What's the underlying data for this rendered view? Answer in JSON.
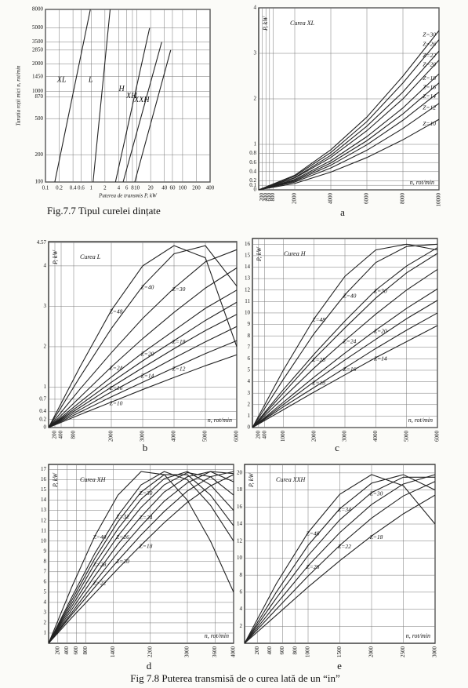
{
  "chart_data": [
    {
      "type": "line",
      "xlog": true,
      "ylog": true,
      "grid": true,
      "color": "#222",
      "x_label": "Puterea de transmis  P, kW",
      "y_label": "Turatia roții mici  n, rot/min",
      "caption": "Fig.7.7 Tipul curelei dințate",
      "xlim": [
        0.1,
        400
      ],
      "ylim": [
        100,
        8000
      ],
      "xticks": [
        0.1,
        0.2,
        0.4,
        0.6,
        1,
        2,
        4,
        6,
        8,
        10,
        20,
        40,
        60,
        100,
        200,
        400
      ],
      "yticks": [
        100,
        200,
        500,
        870,
        1000,
        1450,
        2000,
        2850,
        3500,
        5000,
        8000
      ],
      "series": [
        {
          "name": "XL",
          "x": [
            0.16,
            0.96
          ],
          "values": [
            100,
            8000
          ]
        },
        {
          "name": "L",
          "x": [
            1.1,
            2.6
          ],
          "values": [
            100,
            8000
          ]
        },
        {
          "name": "H",
          "x": [
            3.4,
            19
          ],
          "values": [
            100,
            5000
          ]
        },
        {
          "name": "XH",
          "x": [
            5,
            35
          ],
          "values": [
            100,
            3500
          ]
        },
        {
          "name": "XXH",
          "x": [
            9,
            55
          ],
          "values": [
            100,
            2850
          ]
        }
      ]
    },
    {
      "type": "line",
      "grid": true,
      "color": "#222",
      "title": "Curea XL",
      "x_label": "n, rot/min",
      "y_label": "P, kW",
      "caption": "a",
      "xlim": [
        0,
        10000
      ],
      "ylim": [
        0,
        4
      ],
      "xticks": [
        200,
        400,
        600,
        800,
        2000,
        4000,
        6000,
        8000,
        10000
      ],
      "yticks": [
        0,
        0.1,
        0.2,
        0.4,
        0.6,
        0.8,
        1,
        2,
        3,
        4
      ],
      "x": [
        0,
        2000,
        4000,
        6000,
        8000,
        10000
      ],
      "series": [
        {
          "name": "Z=30",
          "values": [
            0,
            0.32,
            0.88,
            1.6,
            2.5,
            3.5
          ]
        },
        {
          "name": "Z=26",
          "values": [
            0,
            0.3,
            0.82,
            1.5,
            2.35,
            3.3
          ]
        },
        {
          "name": "Z=22",
          "values": [
            0,
            0.27,
            0.76,
            1.4,
            2.15,
            3.05
          ]
        },
        {
          "name": "Z=20",
          "values": [
            0,
            0.26,
            0.71,
            1.3,
            2.0,
            2.85
          ]
        },
        {
          "name": "Z=18",
          "values": [
            0,
            0.23,
            0.64,
            1.17,
            1.8,
            2.55
          ]
        },
        {
          "name": "Z=16",
          "values": [
            0,
            0.21,
            0.59,
            1.08,
            1.67,
            2.35
          ]
        },
        {
          "name": "Z=14",
          "values": [
            0,
            0.19,
            0.54,
            0.99,
            1.53,
            2.15
          ]
        },
        {
          "name": "Z=12",
          "values": [
            0,
            0.17,
            0.48,
            0.87,
            1.35,
            1.9
          ]
        },
        {
          "name": "Z=10",
          "values": [
            0,
            0.14,
            0.39,
            0.71,
            1.1,
            1.55
          ]
        }
      ]
    },
    {
      "type": "line",
      "grid": true,
      "color": "#222",
      "title": "Curea L",
      "x_label": "n, rot/min",
      "y_label": "P, kW",
      "caption": "b",
      "xlim": [
        0,
        6000
      ],
      "ylim": [
        0,
        4.6
      ],
      "xticks": [
        200,
        400,
        800,
        2000,
        3000,
        4000,
        5000,
        6000
      ],
      "yticks": [
        0,
        0.2,
        0.4,
        0.7,
        1,
        2,
        3,
        4,
        4.57
      ],
      "x": [
        0,
        1000,
        2000,
        3000,
        4000,
        5000,
        6000
      ],
      "series": [
        {
          "name": "Z=48",
          "values": [
            0,
            1.5,
            2.9,
            4.0,
            4.5,
            4.2,
            2.0
          ]
        },
        {
          "name": "Z=40",
          "values": [
            0,
            1.25,
            2.45,
            3.5,
            4.3,
            4.5,
            3.5
          ]
        },
        {
          "name": "Z=30",
          "values": [
            0,
            0.95,
            1.85,
            2.7,
            3.45,
            4.1,
            4.4
          ]
        },
        {
          "name": "Z=24",
          "values": [
            0,
            0.75,
            1.5,
            2.2,
            2.85,
            3.45,
            3.95
          ]
        },
        {
          "name": "Z=20",
          "values": [
            0,
            0.63,
            1.25,
            1.85,
            2.4,
            2.95,
            3.4
          ]
        },
        {
          "name": "Z=18",
          "values": [
            0,
            0.56,
            1.12,
            1.65,
            2.15,
            2.65,
            3.1
          ]
        },
        {
          "name": "Z=16",
          "values": [
            0,
            0.5,
            1.0,
            1.48,
            1.95,
            2.4,
            2.8
          ]
        },
        {
          "name": "Z=14",
          "values": [
            0,
            0.44,
            0.88,
            1.3,
            1.72,
            2.12,
            2.5
          ]
        },
        {
          "name": "Z=12",
          "values": [
            0,
            0.38,
            0.76,
            1.12,
            1.48,
            1.83,
            2.15
          ]
        },
        {
          "name": "Z=10",
          "values": [
            0,
            0.32,
            0.63,
            0.94,
            1.24,
            1.53,
            1.8
          ]
        }
      ]
    },
    {
      "type": "line",
      "grid": true,
      "color": "#222",
      "title": "Curea H",
      "x_label": "n, rot/min",
      "y_label": "P, kW",
      "caption": "c",
      "xlim": [
        0,
        6000
      ],
      "ylim": [
        0,
        16.5
      ],
      "xticks": [
        200,
        400,
        1000,
        2000,
        3000,
        4000,
        5000,
        6000
      ],
      "yticks": [
        0,
        1,
        2,
        3,
        4,
        5,
        6,
        7,
        8,
        9,
        10,
        11,
        12,
        13,
        14,
        15,
        16
      ],
      "x": [
        0,
        1000,
        2000,
        3000,
        4000,
        5000,
        6000
      ],
      "series": [
        {
          "name": "Z=48",
          "values": [
            0,
            5,
            9.5,
            13.2,
            15.5,
            16,
            15.5
          ]
        },
        {
          "name": "Z=40",
          "values": [
            0,
            4.2,
            8.2,
            11.6,
            14.4,
            15.8,
            16
          ]
        },
        {
          "name": "Z=30",
          "values": [
            0,
            3.3,
            6.4,
            9.3,
            12,
            14.1,
            15.7
          ]
        },
        {
          "name": "Z=28",
          "values": [
            0,
            3.0,
            6.0,
            8.7,
            11.3,
            13.5,
            15.2
          ]
        },
        {
          "name": "Z=24",
          "values": [
            0,
            2.6,
            5.2,
            7.6,
            9.9,
            12,
            13.8
          ]
        },
        {
          "name": "Z=20",
          "values": [
            0,
            2.2,
            4.4,
            6.5,
            8.5,
            10.4,
            12.1
          ]
        },
        {
          "name": "Z=18",
          "values": [
            0,
            2.0,
            4.0,
            5.9,
            7.7,
            9.5,
            11.1
          ]
        },
        {
          "name": "Z=16",
          "values": [
            0,
            1.8,
            3.5,
            5.2,
            6.9,
            8.5,
            10
          ]
        },
        {
          "name": "Z=14",
          "values": [
            0,
            1.55,
            3.1,
            4.6,
            6.1,
            7.5,
            8.9
          ]
        }
      ]
    },
    {
      "type": "line",
      "grid": true,
      "color": "#222",
      "title": "Curea XH",
      "x_label": "n, rot/min",
      "y_label": "P, kW",
      "caption": "d",
      "xlim": [
        0,
        4000
      ],
      "ylim": [
        0,
        17.5
      ],
      "xticks": [
        200,
        400,
        600,
        800,
        1400,
        2200,
        3000,
        3600,
        4000
      ],
      "yticks": [
        1,
        2,
        3,
        4,
        5,
        6,
        7,
        8,
        9,
        10,
        11,
        12,
        13,
        14,
        15,
        16,
        17
      ],
      "x": [
        0,
        500,
        1000,
        1500,
        2000,
        2500,
        3000,
        3500,
        4000
      ],
      "series": [
        {
          "name": "Z=40",
          "values": [
            0,
            5.5,
            10.5,
            14.5,
            16.8,
            16.5,
            14,
            10,
            5
          ]
        },
        {
          "name": "Z=32",
          "values": [
            0,
            4.5,
            8.8,
            12.5,
            15.5,
            16.8,
            16,
            13.5,
            10
          ]
        },
        {
          "name": "Z=30",
          "values": [
            0,
            4.2,
            8.3,
            11.9,
            14.8,
            16.5,
            16.5,
            14.5,
            11.5
          ]
        },
        {
          "name": "Z=28",
          "values": [
            0,
            3.9,
            7.8,
            11.2,
            14.1,
            16.1,
            16.8,
            15.5,
            13
          ]
        },
        {
          "name": "Z=26",
          "values": [
            0,
            3.6,
            7.2,
            10.5,
            13.3,
            15.5,
            16.7,
            16.3,
            14.5
          ]
        },
        {
          "name": "Z=24",
          "values": [
            0,
            3.3,
            6.6,
            9.7,
            12.4,
            14.8,
            16.3,
            16.8,
            15.8
          ]
        },
        {
          "name": "Z=22",
          "values": [
            0,
            3.0,
            6.0,
            8.9,
            11.5,
            13.9,
            15.7,
            16.8,
            16.6
          ]
        },
        {
          "name": "Z=20",
          "values": [
            0,
            2.8,
            5.5,
            8.1,
            10.6,
            12.9,
            14.9,
            16.3,
            16.8
          ]
        },
        {
          "name": "Z=18",
          "values": [
            0,
            2.5,
            4.9,
            7.3,
            9.6,
            11.8,
            13.8,
            15.4,
            16.5
          ]
        }
      ]
    },
    {
      "type": "line",
      "grid": true,
      "color": "#222",
      "title": "Curea XXH",
      "x_label": "n, rot/min",
      "y_label": "P, kW",
      "caption": "e",
      "xlim": [
        0,
        3000
      ],
      "ylim": [
        0,
        21
      ],
      "xticks": [
        200,
        400,
        600,
        800,
        1000,
        1500,
        2000,
        2500,
        3000
      ],
      "yticks": [
        2,
        4,
        6,
        8,
        10,
        12,
        14,
        16,
        18,
        20
      ],
      "x": [
        0,
        500,
        1000,
        1500,
        2000,
        2500,
        3000
      ],
      "series": [
        {
          "name": "Z=40",
          "values": [
            0,
            7,
            13,
            17.5,
            19.8,
            18.5,
            14
          ]
        },
        {
          "name": "Z=34",
          "values": [
            0,
            6,
            11.5,
            15.8,
            18.8,
            19.8,
            18
          ]
        },
        {
          "name": "Z=30",
          "values": [
            0,
            5.3,
            10.3,
            14.5,
            17.7,
            19.5,
            19.5
          ]
        },
        {
          "name": "Z=26",
          "values": [
            0,
            4.6,
            9.1,
            13,
            16.3,
            18.7,
            19.8
          ]
        },
        {
          "name": "Z=22",
          "values": [
            0,
            4,
            7.9,
            11.5,
            14.7,
            17.3,
            19
          ]
        },
        {
          "name": "Z=18",
          "values": [
            0,
            3.3,
            6.6,
            9.7,
            12.6,
            15.2,
            17.4
          ]
        }
      ]
    }
  ],
  "figure_caption": "Fig 7.8 Puterea transmisă de o curea lată de un “in”"
}
